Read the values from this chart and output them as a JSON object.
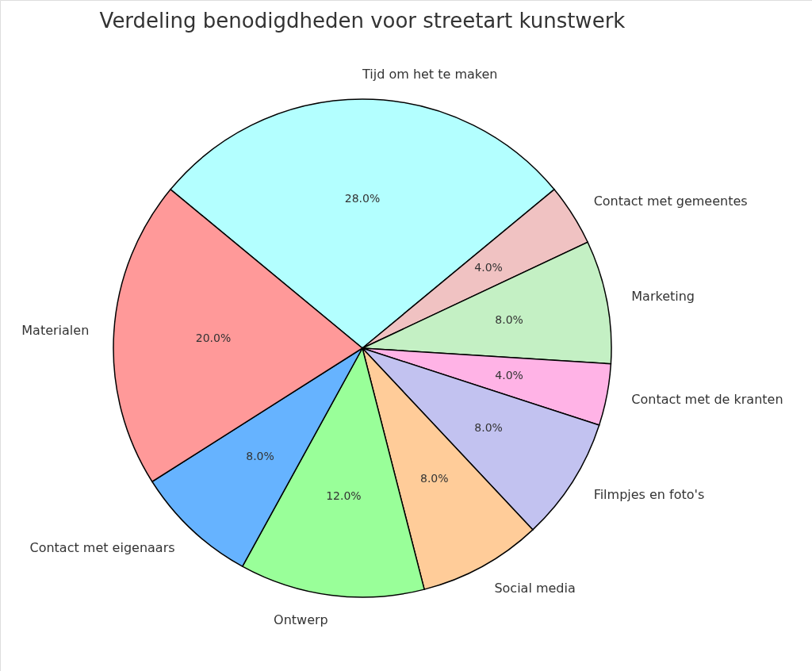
{
  "chart_data": {
    "type": "pie",
    "title": "Verdeling benodigdheden voor streetart kunstwerk",
    "categories": [
      "Tijd om het te maken",
      "Contact met gemeentes",
      "Marketing",
      "Contact met de kranten",
      "Filmpjes en foto's",
      "Social media",
      "Ontwerp",
      "Contact met eigenaars",
      "Materialen"
    ],
    "values": [
      28,
      4,
      8,
      4,
      8,
      8,
      12,
      8,
      20
    ],
    "colors": [
      "#b3ffff",
      "#f0c2c2",
      "#c4f0c4",
      "#ffb3e6",
      "#c2c2f0",
      "#ffcc99",
      "#99ff99",
      "#66b3ff",
      "#ff9999"
    ],
    "value_labels": [
      "28.0%",
      "4.0%",
      "8.0%",
      "4.0%",
      "8.0%",
      "8.0%",
      "12.0%",
      "8.0%",
      "20.0%"
    ]
  }
}
